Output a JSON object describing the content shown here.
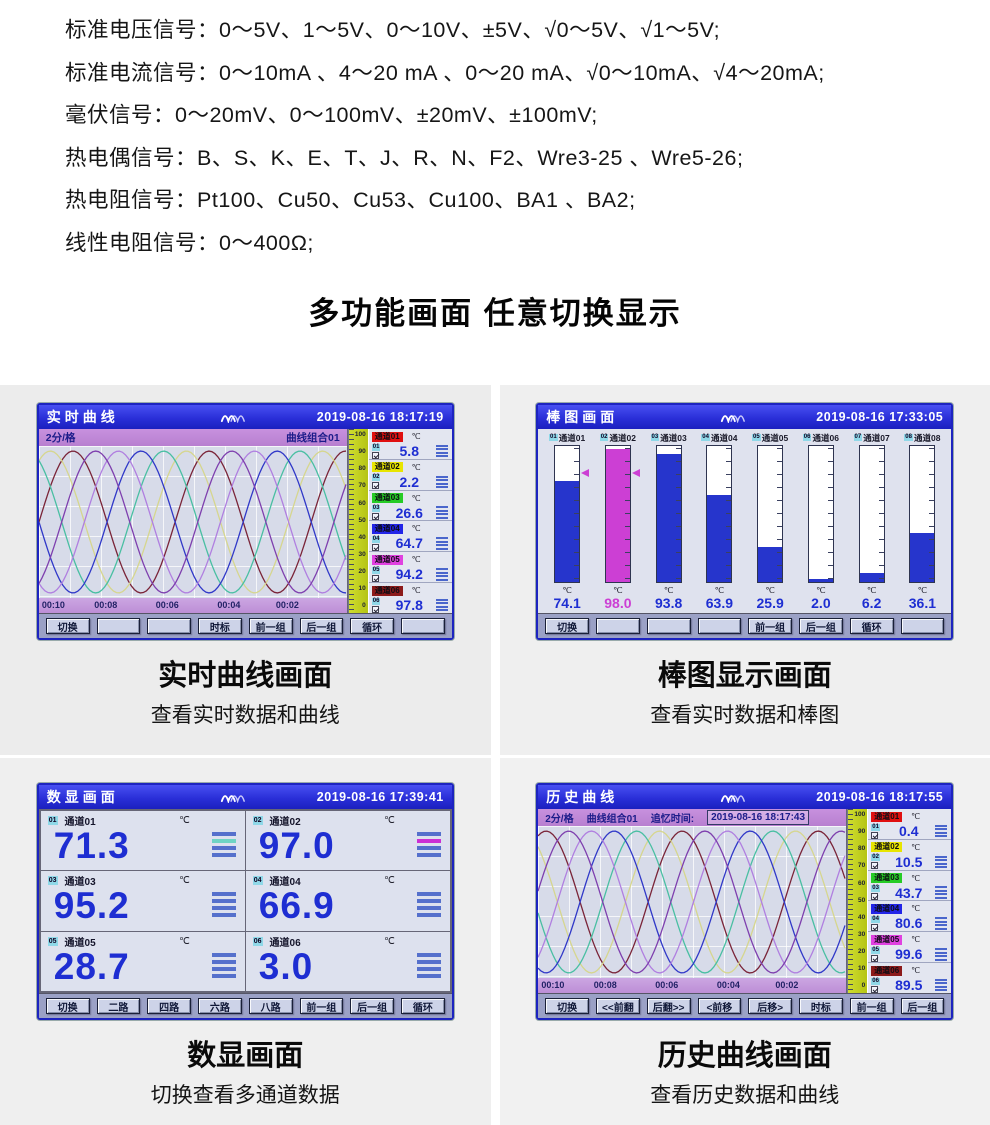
{
  "specs": {
    "lines": [
      "标准电压信号：0～5V、1～5V、0～10V、±5V、√0～5V、√1～5V;",
      "标准电流信号：0～10mA 、4～20 mA 、0～20 mA、√0～10mA、√4～20mA;",
      "毫伏信号：0～20mV、0～100mV、±20mV、±100mV;",
      "热电偶信号：B、S、K、E、T、J、R、N、F2、Wre3-25 、Wre5-26;",
      "热电阻信号：Pt100、Cu50、Cu53、Cu100、BA1 、BA2;",
      "线性电阻信号：0～400Ω;"
    ]
  },
  "section_title": "多功能画面 任意切换显示",
  "scale_labels": [
    "100",
    "90",
    "80",
    "70",
    "60",
    "50",
    "40",
    "30",
    "20",
    "10",
    "0"
  ],
  "panels": {
    "realtime": {
      "caption": "实时曲线画面",
      "subcaption": "查看实时数据和曲线",
      "screen": {
        "title": "实时曲线",
        "datetime": "2019-08-16 18:17:19",
        "interval_label": "2分/格",
        "group_label": "曲线组合01",
        "time_labels": [
          "00:10",
          "00:08",
          "00:06",
          "00:04",
          "00:02"
        ],
        "channels": [
          {
            "id": "01",
            "name": "通道01",
            "unit": "℃",
            "value": "5.8",
            "badge": "#e01010",
            "curve": "#7a2438"
          },
          {
            "id": "02",
            "name": "通道02",
            "unit": "℃",
            "value": "2.2",
            "badge": "#e8e500",
            "curve": "#d6d68e"
          },
          {
            "id": "03",
            "name": "通道03",
            "unit": "℃",
            "value": "26.6",
            "badge": "#26cc26",
            "curve": "#49bfa2"
          },
          {
            "id": "04",
            "name": "通道04",
            "unit": "℃",
            "value": "64.7",
            "badge": "#2224e8",
            "curve": "#3038c8"
          },
          {
            "id": "05",
            "name": "通道05",
            "unit": "℃",
            "value": "94.2",
            "badge": "#e040e0",
            "curve": "#b07fe0"
          },
          {
            "id": "06",
            "name": "通道06",
            "unit": "℃",
            "value": "97.8",
            "badge": "#8c1a1a",
            "curve": "#7e3fae"
          }
        ],
        "buttons": [
          "切换",
          "",
          "",
          "时标",
          "前一组",
          "后一组",
          "循环",
          ""
        ]
      }
    },
    "bargraph": {
      "caption": "棒图显示画面",
      "subcaption": "查看实时数据和棒图",
      "screen": {
        "title": "棒图画面",
        "datetime": "2019-08-16 17:33:05",
        "bars": [
          {
            "id": "01",
            "name": "通道01",
            "unit": "℃",
            "value": "74.1",
            "pct": 74.1,
            "fill": "#2635cc",
            "vcolor": "#1e2ed2",
            "marker": 80
          },
          {
            "id": "02",
            "name": "通道02",
            "unit": "℃",
            "value": "98.0",
            "pct": 98.0,
            "fill": "#cc3fd4",
            "vcolor": "#cc3fd4",
            "marker": 80
          },
          {
            "id": "03",
            "name": "通道03",
            "unit": "℃",
            "value": "93.8",
            "pct": 93.8,
            "fill": "#2635cc",
            "vcolor": "#1e2ed2",
            "marker": null
          },
          {
            "id": "04",
            "name": "通道04",
            "unit": "℃",
            "value": "63.9",
            "pct": 63.9,
            "fill": "#2635cc",
            "vcolor": "#1e2ed2",
            "marker": null
          },
          {
            "id": "05",
            "name": "通道05",
            "unit": "℃",
            "value": "25.9",
            "pct": 25.9,
            "fill": "#2635cc",
            "vcolor": "#1e2ed2",
            "marker": null
          },
          {
            "id": "06",
            "name": "通道06",
            "unit": "℃",
            "value": "2.0",
            "pct": 2.0,
            "fill": "#2635cc",
            "vcolor": "#1e2ed2",
            "marker": null
          },
          {
            "id": "07",
            "name": "通道07",
            "unit": "℃",
            "value": "6.2",
            "pct": 6.2,
            "fill": "#2635cc",
            "vcolor": "#1e2ed2",
            "marker": null
          },
          {
            "id": "08",
            "name": "通道08",
            "unit": "℃",
            "value": "36.1",
            "pct": 36.1,
            "fill": "#2635cc",
            "vcolor": "#1e2ed2",
            "marker": null
          }
        ],
        "buttons": [
          "切换",
          "",
          "",
          "",
          "前一组",
          "后一组",
          "循环",
          ""
        ]
      }
    },
    "digital": {
      "caption": "数显画面",
      "subcaption": "切换查看多通道数据",
      "screen": {
        "title": "数显画面",
        "datetime": "2019-08-16 17:39:41",
        "cells": [
          {
            "id": "01",
            "name": "通道01",
            "unit": "℃",
            "value": "71.3",
            "accent": "#6fd4c4"
          },
          {
            "id": "02",
            "name": "通道02",
            "unit": "℃",
            "value": "97.0",
            "accent": "#cc2fd4"
          },
          {
            "id": "03",
            "name": "通道03",
            "unit": "℃",
            "value": "95.2",
            "accent": null
          },
          {
            "id": "04",
            "name": "通道04",
            "unit": "℃",
            "value": "66.9",
            "accent": null
          },
          {
            "id": "05",
            "name": "通道05",
            "unit": "℃",
            "value": "28.7",
            "accent": null
          },
          {
            "id": "06",
            "name": "通道06",
            "unit": "℃",
            "value": "3.0",
            "accent": null
          }
        ],
        "buttons": [
          "切换",
          "二路",
          "四路",
          "六路",
          "八路",
          "前一组",
          "后一组",
          "循环"
        ]
      }
    },
    "history": {
      "caption": "历史曲线画面",
      "subcaption": "查看历史数据和曲线",
      "screen": {
        "title": "历史曲线",
        "datetime": "2019-08-16 18:17:55",
        "interval_label": "2分/格",
        "group_label": "曲线组合01",
        "recall_label": "追忆时间:",
        "recall_time": "2019-08-16 18:17:43",
        "time_labels": [
          "00:10",
          "00:08",
          "00:06",
          "00:04",
          "00:02"
        ],
        "channels": [
          {
            "id": "01",
            "name": "通道01",
            "unit": "℃",
            "value": "0.4",
            "badge": "#e01010",
            "curve": "#7a2438"
          },
          {
            "id": "02",
            "name": "通道02",
            "unit": "℃",
            "value": "10.5",
            "badge": "#e8e500",
            "curve": "#d6d68e"
          },
          {
            "id": "03",
            "name": "通道03",
            "unit": "℃",
            "value": "43.7",
            "badge": "#26cc26",
            "curve": "#49bfa2"
          },
          {
            "id": "04",
            "name": "通道04",
            "unit": "℃",
            "value": "80.6",
            "badge": "#2224e8",
            "curve": "#3038c8"
          },
          {
            "id": "05",
            "name": "通道05",
            "unit": "℃",
            "value": "99.6",
            "badge": "#e040e0",
            "curve": "#b07fe0"
          },
          {
            "id": "06",
            "name": "通道06",
            "unit": "℃",
            "value": "89.5",
            "badge": "#8c1a1a",
            "curve": "#7e3fae"
          }
        ],
        "buttons": [
          "切换",
          "<<前翻",
          "后翻>>",
          "<前移",
          "后移>",
          "时标",
          "前一组",
          "后一组"
        ]
      }
    }
  },
  "chart_data": {
    "type": "bar",
    "title": "棒图画面",
    "categories": [
      "通道01",
      "通道02",
      "通道03",
      "通道04",
      "通道05",
      "通道06",
      "通道07",
      "通道08"
    ],
    "values": [
      74.1,
      98.0,
      93.8,
      63.9,
      25.9,
      2.0,
      6.2,
      36.1
    ],
    "unit": "℃",
    "ylim": [
      0,
      100
    ]
  }
}
